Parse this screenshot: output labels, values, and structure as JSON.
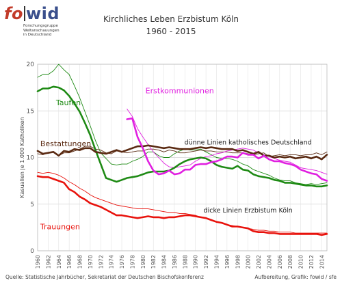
{
  "logo": {
    "brand_left": "fo",
    "brand_right": "wid",
    "subtitle_lines": [
      "Forschungsgruppe",
      "Weltanschauungen",
      "in Deutschland"
    ]
  },
  "header": {
    "title": "Kirchliches Leben Erzbistum Köln",
    "subtitle": "1960 - 2015"
  },
  "footer": {
    "source": "Quelle: Statistische Jahrbücher, Sekretariat der Deutschen Bischofskonferenz",
    "credit": "Aufbereitung, Grafik: fowid / sfe"
  },
  "chart_data": {
    "type": "line",
    "title": "Kirchliches Leben Erzbistum Köln",
    "subtitle": "1960 - 2015",
    "ylabel": "Kasualien je 1.000 Katholiken",
    "xlabel": "",
    "xlim": [
      1960,
      2015
    ],
    "ylim": [
      0,
      20
    ],
    "yticks": [
      0,
      5,
      10,
      15,
      20
    ],
    "xticks": [
      1960,
      1962,
      1964,
      1966,
      1968,
      1970,
      1972,
      1974,
      1976,
      1978,
      1980,
      1982,
      1984,
      1986,
      1988,
      1990,
      1992,
      1994,
      1996,
      1998,
      2000,
      2002,
      2004,
      2006,
      2008,
      2010,
      2012,
      2014
    ],
    "grid": true,
    "annotations": [
      {
        "text": "dünne Linien katholisches Deutschland",
        "x": 2000,
        "y": 11.4
      },
      {
        "text": "dicke Linien Erzbistum Köln",
        "x": 2000,
        "y": 4.1
      }
    ],
    "series": [
      {
        "name": "Taufen",
        "color": "#1e8a14",
        "width": "thick",
        "label_pos": [
          1963.5,
          15.6
        ],
        "x": [
          1960,
          1961,
          1962,
          1963,
          1964,
          1965,
          1966,
          1967,
          1968,
          1969,
          1970,
          1971,
          1972,
          1973,
          1974,
          1975,
          1976,
          1977,
          1978,
          1979,
          1980,
          1981,
          1982,
          1983,
          1984,
          1985,
          1986,
          1987,
          1988,
          1989,
          1990,
          1991,
          1992,
          1993,
          1994,
          1995,
          1996,
          1997,
          1998,
          1999,
          2000,
          2001,
          2002,
          2003,
          2004,
          2005,
          2006,
          2007,
          2008,
          2009,
          2010,
          2011,
          2012,
          2013,
          2014,
          2015
        ],
        "values": [
          17.1,
          17.4,
          17.4,
          17.6,
          17.5,
          17.2,
          16.6,
          15.8,
          14.9,
          13.7,
          12.4,
          10.8,
          9.3,
          7.8,
          7.6,
          7.4,
          7.6,
          7.8,
          7.9,
          8.0,
          8.2,
          8.4,
          8.5,
          8.5,
          8.5,
          8.6,
          8.9,
          9.3,
          9.6,
          9.8,
          9.9,
          10.0,
          9.9,
          9.6,
          9.2,
          9.0,
          8.9,
          8.8,
          9.1,
          8.7,
          8.6,
          8.2,
          8.0,
          7.9,
          7.8,
          7.6,
          7.5,
          7.3,
          7.3,
          7.2,
          7.1,
          7.0,
          7.0,
          6.9,
          6.9,
          7.0
        ]
      },
      {
        "name": "Taufen (katholisches Deutschland)",
        "color": "#1e8a14",
        "width": "thin",
        "x": [
          1960,
          1961,
          1962,
          1963,
          1964,
          1965,
          1966,
          1967,
          1968,
          1969,
          1970,
          1971,
          1972,
          1973,
          1974,
          1975,
          1976,
          1977,
          1978,
          1979,
          1980,
          1981,
          1982,
          1983,
          1984,
          1985,
          1986,
          1987,
          1988,
          1989,
          1990,
          1991,
          1992,
          1993,
          1994,
          1995,
          1996,
          1997,
          1998,
          1999,
          2000,
          2001,
          2002,
          2003,
          2004,
          2005,
          2006,
          2007,
          2008,
          2009,
          2010,
          2011,
          2012,
          2013,
          2014,
          2015
        ],
        "values": [
          18.6,
          18.9,
          18.9,
          19.3,
          20.0,
          19.4,
          18.9,
          17.7,
          16.4,
          14.9,
          13.4,
          11.8,
          10.5,
          9.9,
          9.3,
          9.2,
          9.3,
          9.3,
          9.6,
          9.8,
          10.1,
          10.6,
          10.6,
          10.2,
          10.0,
          10.0,
          10.4,
          10.7,
          10.9,
          10.8,
          10.8,
          10.9,
          10.6,
          10.3,
          10.0,
          9.9,
          9.9,
          9.8,
          9.6,
          9.3,
          9.1,
          8.7,
          8.5,
          8.3,
          8.1,
          7.8,
          7.6,
          7.5,
          7.5,
          7.3,
          7.2,
          7.1,
          7.2,
          7.1,
          7.2,
          7.3
        ]
      },
      {
        "name": "Bestattungen",
        "color": "#5a2a12",
        "width": "thick",
        "label_pos": [
          1960.5,
          11.2
        ],
        "x": [
          1960,
          1961,
          1962,
          1963,
          1964,
          1965,
          1966,
          1967,
          1968,
          1969,
          1970,
          1971,
          1972,
          1973,
          1974,
          1975,
          1976,
          1977,
          1978,
          1979,
          1980,
          1981,
          1982,
          1983,
          1984,
          1985,
          1986,
          1987,
          1988,
          1989,
          1990,
          1991,
          1992,
          1993,
          1994,
          1995,
          1996,
          1997,
          1998,
          1999,
          2000,
          2001,
          2002,
          2003,
          2004,
          2005,
          2006,
          2007,
          2008,
          2009,
          2010,
          2011,
          2012,
          2013,
          2014,
          2015
        ],
        "values": [
          10.7,
          10.4,
          10.5,
          10.6,
          10.2,
          10.7,
          10.6,
          10.9,
          10.8,
          11.0,
          11.0,
          10.6,
          10.5,
          10.4,
          10.6,
          10.8,
          10.6,
          10.8,
          11.0,
          11.2,
          11.2,
          11.3,
          11.2,
          11.1,
          11.0,
          11.1,
          11.0,
          10.9,
          10.9,
          10.9,
          11.0,
          11.1,
          11.0,
          11.1,
          11.0,
          10.9,
          10.9,
          10.9,
          10.7,
          10.8,
          10.6,
          10.4,
          10.6,
          10.2,
          10.2,
          10.0,
          10.1,
          10.0,
          10.1,
          9.9,
          10.0,
          10.1,
          9.9,
          10.1,
          9.8,
          10.3
        ]
      },
      {
        "name": "Bestattungen (katholisches Deutschland)",
        "color": "#5a2a12",
        "width": "thin",
        "x": [
          1960,
          1961,
          1962,
          1963,
          1964,
          1965,
          1966,
          1967,
          1968,
          1969,
          1970,
          1971,
          1972,
          1973,
          1974,
          1975,
          1976,
          1977,
          1978,
          1979,
          1980,
          1981,
          1982,
          1983,
          1984,
          1985,
          1986,
          1987,
          1988,
          1989,
          1990,
          1991,
          1992,
          1993,
          1994,
          1995,
          1996,
          1997,
          1998,
          1999,
          2000,
          2001,
          2002,
          2003,
          2004,
          2005,
          2006,
          2007,
          2008,
          2009,
          2010,
          2011,
          2012,
          2013,
          2014,
          2015
        ],
        "values": [
          10.4,
          10.3,
          10.5,
          10.6,
          10.2,
          10.5,
          10.5,
          10.7,
          10.9,
          11.2,
          11.2,
          10.9,
          10.8,
          10.5,
          10.4,
          10.7,
          10.6,
          10.5,
          10.6,
          10.7,
          10.7,
          10.9,
          10.9,
          10.8,
          10.6,
          10.8,
          10.7,
          10.5,
          10.5,
          10.6,
          10.7,
          10.8,
          10.7,
          10.7,
          10.6,
          10.6,
          10.6,
          10.5,
          10.5,
          10.5,
          10.4,
          10.3,
          10.4,
          10.5,
          10.1,
          10.2,
          10.3,
          10.2,
          10.3,
          10.3,
          10.2,
          10.3,
          10.3,
          10.5,
          10.3,
          10.6
        ]
      },
      {
        "name": "Erstkommunionen",
        "color": "#e020e0",
        "width": "thick",
        "label_pos": [
          1980.5,
          16.9
        ],
        "x": [
          1977,
          1978,
          1979,
          1980,
          1981,
          1982,
          1983,
          1984,
          1985,
          1986,
          1987,
          1988,
          1989,
          1990,
          1991,
          1992,
          1993,
          1994,
          1995,
          1996,
          1997,
          1998,
          1999,
          2000,
          2001,
          2002,
          2003,
          2004,
          2005,
          2006,
          2007,
          2008,
          2009,
          2010,
          2011,
          2012,
          2013,
          2014,
          2015
        ],
        "values": [
          14.1,
          14.2,
          12.2,
          11.0,
          9.6,
          8.6,
          8.2,
          8.3,
          8.6,
          8.2,
          8.3,
          8.7,
          8.7,
          9.2,
          9.3,
          9.3,
          9.5,
          9.6,
          9.8,
          10.1,
          10.1,
          10.0,
          10.5,
          10.3,
          10.3,
          9.9,
          10.2,
          9.8,
          9.6,
          9.6,
          9.4,
          9.3,
          9.1,
          8.7,
          8.5,
          8.3,
          8.2,
          7.7,
          7.5
        ]
      },
      {
        "name": "Erstkommunionen (katholisches Deutschland)",
        "color": "#e020e0",
        "width": "thin",
        "x": [
          1977,
          1978,
          1979,
          1980,
          1981,
          1982,
          1983,
          1984,
          1985,
          1986,
          1987,
          1988,
          1989,
          1990,
          1991,
          1992,
          1993,
          1994,
          1995,
          1996,
          1997,
          1998,
          1999,
          2000,
          2001,
          2002,
          2003,
          2004,
          2005,
          2006,
          2007,
          2008,
          2009,
          2010,
          2011,
          2012,
          2013,
          2014,
          2015
        ],
        "values": [
          15.2,
          14.4,
          13.1,
          12.2,
          11.4,
          10.6,
          10.0,
          9.4,
          9.0,
          8.9,
          9.0,
          9.1,
          9.2,
          9.6,
          9.9,
          10.1,
          10.2,
          10.4,
          10.5,
          10.7,
          10.8,
          10.9,
          11.0,
          10.9,
          10.8,
          10.5,
          10.3,
          10.1,
          9.9,
          9.7,
          9.6,
          9.5,
          9.2,
          8.9,
          8.8,
          8.7,
          8.6,
          8.4,
          8.2
        ]
      },
      {
        "name": "Trauungen",
        "color": "#e8120c",
        "width": "thick",
        "label_pos": [
          1960.5,
          2.3
        ],
        "x": [
          1960,
          1961,
          1962,
          1963,
          1964,
          1965,
          1966,
          1967,
          1968,
          1969,
          1970,
          1971,
          1972,
          1973,
          1974,
          1975,
          1976,
          1977,
          1978,
          1979,
          1980,
          1981,
          1982,
          1983,
          1984,
          1985,
          1986,
          1987,
          1988,
          1989,
          1990,
          1991,
          1992,
          1993,
          1994,
          1995,
          1996,
          1997,
          1998,
          1999,
          2000,
          2001,
          2002,
          2003,
          2004,
          2005,
          2006,
          2007,
          2008,
          2009,
          2010,
          2011,
          2012,
          2013,
          2014,
          2015
        ],
        "values": [
          8.0,
          7.9,
          7.9,
          7.7,
          7.5,
          7.3,
          6.6,
          6.3,
          5.8,
          5.5,
          5.1,
          4.9,
          4.7,
          4.4,
          4.1,
          3.8,
          3.8,
          3.7,
          3.6,
          3.5,
          3.6,
          3.7,
          3.6,
          3.6,
          3.5,
          3.6,
          3.6,
          3.7,
          3.8,
          3.8,
          3.7,
          3.6,
          3.5,
          3.3,
          3.1,
          3.0,
          2.8,
          2.6,
          2.6,
          2.5,
          2.4,
          2.1,
          2.0,
          2.0,
          1.9,
          1.9,
          1.8,
          1.8,
          1.8,
          1.8,
          1.8,
          1.8,
          1.8,
          1.8,
          1.7,
          1.8
        ]
      },
      {
        "name": "Trauungen (katholisches Deutschland)",
        "color": "#e8120c",
        "width": "thin",
        "x": [
          1960,
          1961,
          1962,
          1963,
          1964,
          1965,
          1966,
          1967,
          1968,
          1969,
          1970,
          1971,
          1972,
          1973,
          1974,
          1975,
          1976,
          1977,
          1978,
          1979,
          1980,
          1981,
          1982,
          1983,
          1984,
          1985,
          1986,
          1987,
          1988,
          1989,
          1990,
          1991,
          1992,
          1993,
          1994,
          1995,
          1996,
          1997,
          1998,
          1999,
          2000,
          2001,
          2002,
          2003,
          2004,
          2005,
          2006,
          2007,
          2008,
          2009,
          2010,
          2011,
          2012,
          2013,
          2014,
          2015
        ],
        "values": [
          8.4,
          8.3,
          8.4,
          8.3,
          8.1,
          7.8,
          7.4,
          7.1,
          6.7,
          6.4,
          6.0,
          5.7,
          5.5,
          5.3,
          5.1,
          4.9,
          4.8,
          4.7,
          4.6,
          4.5,
          4.5,
          4.5,
          4.4,
          4.3,
          4.2,
          4.1,
          4.1,
          4.0,
          4.0,
          3.9,
          3.8,
          3.6,
          3.5,
          3.3,
          3.1,
          3.0,
          2.8,
          2.7,
          2.6,
          2.5,
          2.4,
          2.3,
          2.2,
          2.2,
          2.1,
          2.1,
          2.0,
          2.0,
          2.0,
          1.9,
          1.9,
          1.9,
          1.9,
          1.9,
          1.9,
          1.9
        ]
      }
    ]
  }
}
